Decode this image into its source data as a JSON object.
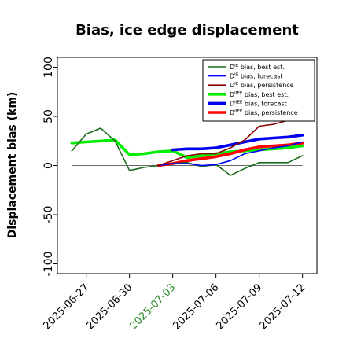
{
  "chart_data": {
    "type": "line",
    "title": "Bias, ice edge displacement",
    "xlabel": "",
    "ylabel": "Displacement bias (km)",
    "ylim": [
      -110,
      110
    ],
    "yticks": [
      -100,
      -50,
      0,
      50,
      100
    ],
    "xlim": [
      "2025-06-25",
      "2025-07-13"
    ],
    "xticks": [
      "2025-06-27",
      "2025-06-30",
      "2025-07-03",
      "2025-07-06",
      "2025-07-09",
      "2025-07-12"
    ],
    "highlighted_xtick": "2025-07-03",
    "highlight_color": "#228B22",
    "grid": false,
    "legend_position": "top-right",
    "zero_line": 0,
    "series": [
      {
        "name": "D^IE bias, best est.",
        "legend_base": "D",
        "legend_sup": "IE",
        "legend_rest": " bias, best est.",
        "color": "#1a6b1a",
        "width": "thin",
        "x": [
          "2025-06-26",
          "2025-06-27",
          "2025-06-28",
          "2025-06-29",
          "2025-06-30",
          "2025-07-01",
          "2025-07-02",
          "2025-07-03",
          "2025-07-04",
          "2025-07-05",
          "2025-07-06",
          "2025-07-07",
          "2025-07-08",
          "2025-07-09",
          "2025-07-10",
          "2025-07-11",
          "2025-07-12"
        ],
        "y": [
          15,
          32,
          38,
          25,
          -5,
          -2,
          0,
          2,
          3,
          -1,
          1,
          -10,
          -3,
          3,
          3,
          3,
          10
        ]
      },
      {
        "name": "D^IE bias, forecast",
        "legend_base": "D",
        "legend_sup": "IE",
        "legend_rest": " bias, forecast",
        "color": "#0000ff",
        "width": "thin",
        "x": [
          "2025-07-02",
          "2025-07-03",
          "2025-07-04",
          "2025-07-05",
          "2025-07-06",
          "2025-07-07",
          "2025-07-08",
          "2025-07-09",
          "2025-07-10",
          "2025-07-11",
          "2025-07-12"
        ],
        "y": [
          0,
          2,
          2,
          0,
          1,
          5,
          12,
          15,
          18,
          20,
          24
        ]
      },
      {
        "name": "D^IE bias, persistence",
        "legend_base": "D",
        "legend_sup": "IE",
        "legend_rest": " bias, persistence",
        "color": "#8b0000",
        "width": "thin",
        "x": [
          "2025-07-02",
          "2025-07-03",
          "2025-07-04",
          "2025-07-05",
          "2025-07-06",
          "2025-07-07",
          "2025-07-08",
          "2025-07-09",
          "2025-07-10",
          "2025-07-11"
        ],
        "y": [
          0,
          5,
          10,
          12,
          12,
          18,
          26,
          40,
          42,
          46
        ]
      },
      {
        "name": "D^IIEE bias, best est.",
        "legend_base": "D",
        "legend_sup": "IIEE",
        "legend_rest": " bias, best est.",
        "color": "#00ee00",
        "width": "thick",
        "x": [
          "2025-06-26",
          "2025-06-27",
          "2025-06-28",
          "2025-06-29",
          "2025-06-30",
          "2025-07-01",
          "2025-07-02",
          "2025-07-03",
          "2025-07-04",
          "2025-07-05",
          "2025-07-06",
          "2025-07-07",
          "2025-07-08",
          "2025-07-09",
          "2025-07-10",
          "2025-07-11",
          "2025-07-12"
        ],
        "y": [
          23,
          24,
          25,
          26,
          11,
          12,
          14,
          15,
          8,
          10,
          12,
          14,
          15,
          16,
          17,
          18,
          20
        ]
      },
      {
        "name": "D^IIEE bias, forecast",
        "legend_base": "D",
        "legend_sup": "IIEE",
        "legend_rest": " bias, forecast",
        "color": "#0000ee",
        "width": "thick",
        "x": [
          "2025-07-03",
          "2025-07-04",
          "2025-07-05",
          "2025-07-06",
          "2025-07-07",
          "2025-07-08",
          "2025-07-09",
          "2025-07-10",
          "2025-07-11",
          "2025-07-12"
        ],
        "y": [
          16,
          17,
          17,
          18,
          21,
          24,
          27,
          28,
          29,
          31
        ]
      },
      {
        "name": "D^IIEE bias, persistence",
        "legend_base": "D",
        "legend_sup": "IIEE",
        "legend_rest": " bias, persistence",
        "color": "#ff0000",
        "width": "thick",
        "x": [
          "2025-07-02",
          "2025-07-03",
          "2025-07-04",
          "2025-07-05",
          "2025-07-06",
          "2025-07-07",
          "2025-07-08",
          "2025-07-09",
          "2025-07-10",
          "2025-07-11",
          "2025-07-12"
        ],
        "y": [
          0,
          2,
          5,
          7,
          9,
          12,
          16,
          19,
          20,
          21,
          23
        ]
      }
    ]
  }
}
